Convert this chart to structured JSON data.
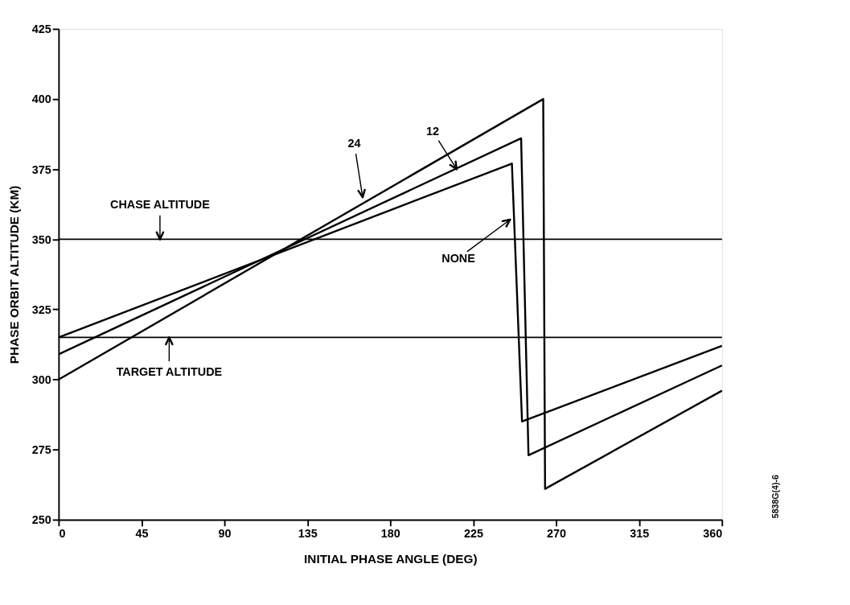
{
  "chart_data": {
    "type": "line",
    "xlabel": "INITIAL PHASE ANGLE (DEG)",
    "ylabel": "PHASE ORBIT ALTITUDE (KM)",
    "series": [
      {
        "color": "#000000",
        "x": [
          0,
          263,
          264,
          360
        ],
        "values": [
          300,
          400,
          261,
          296
        ]
      },
      {
        "color": "#000000",
        "x": [
          0,
          251,
          255,
          360
        ],
        "values": [
          309,
          386,
          273,
          305
        ]
      },
      {
        "color": "#000000",
        "x": [
          0,
          246,
          251.5,
          360
        ],
        "values": [
          315,
          377,
          285,
          312
        ]
      }
    ],
    "ref_lines": [
      {
        "axis": "y",
        "value": 350,
        "label": "CHASE ALTITUDE",
        "color": "#000000"
      },
      {
        "axis": "y",
        "value": 315,
        "label": "TARGET ALTITUDE",
        "color": "#000000"
      }
    ],
    "annotations": [
      {
        "text": "24",
        "x": 165,
        "y": 365
      },
      {
        "text": "12",
        "x": 216,
        "y": 375
      },
      {
        "text": "NONE",
        "x": 245,
        "y": 357
      },
      "5838G(4)-6"
    ],
    "xlim": [
      0,
      360
    ],
    "xticks": [
      0,
      45,
      90,
      135,
      180,
      225,
      270,
      315,
      360
    ],
    "ylim": [
      250,
      425
    ],
    "yticks": [
      250,
      275,
      300,
      325,
      350,
      375,
      400,
      425
    ],
    "grid": false,
    "marker": "none",
    "line_style": "solid"
  }
}
